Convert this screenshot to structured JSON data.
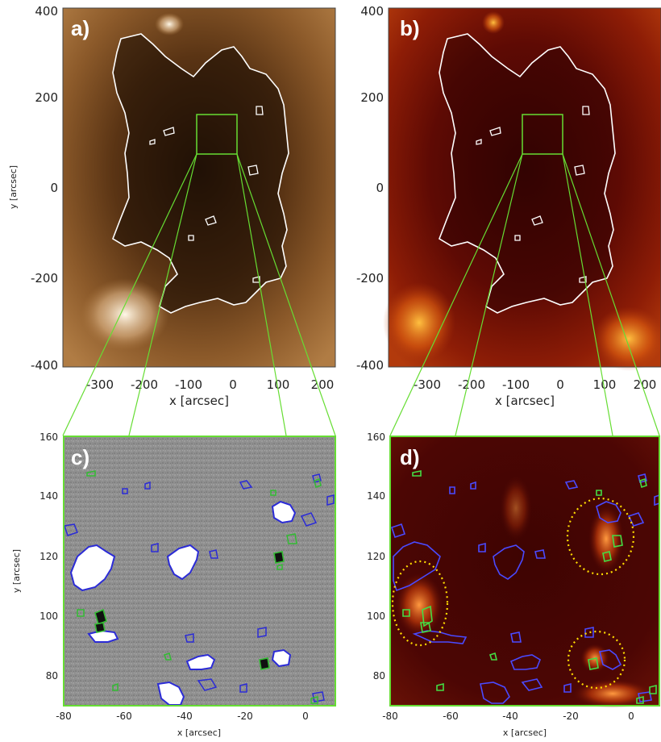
{
  "panels": {
    "a": {
      "label": "a)",
      "x_ticks": [
        "-300",
        "-200",
        "-100",
        "0",
        "100",
        "200"
      ],
      "y_ticks": [
        "400",
        "200",
        "0",
        "-200",
        "-400"
      ],
      "xlabel": "x [arcsec]",
      "ylabel": "y [arcsec]"
    },
    "b": {
      "label": "b)",
      "x_ticks": [
        "-300",
        "-200",
        "-100",
        "0",
        "100",
        "200"
      ],
      "y_ticks": [
        "400",
        "200",
        "0",
        "-200",
        "-400"
      ],
      "xlabel": "x [arcsec]"
    },
    "c": {
      "label": "c)",
      "x_ticks": [
        "-80",
        "-60",
        "-40",
        "-20",
        "0"
      ],
      "y_ticks": [
        "160",
        "140",
        "120",
        "100",
        "80"
      ],
      "xlabel": "x [arcsec]",
      "ylabel": "y [arcsec]"
    },
    "d": {
      "label": "d)",
      "x_ticks": [
        "-80",
        "-60",
        "-40",
        "-20",
        "0"
      ],
      "y_ticks": [
        "160",
        "140",
        "120",
        "100",
        "80"
      ],
      "xlabel": "x [arcsec]"
    }
  },
  "colors": {
    "coronal_hole_contour": "#ffffff",
    "zoom_box": "#66dd33",
    "positive_polarity_contour": "#2b2bd6",
    "negative_polarity_contour": "#33bb33",
    "ellipse_marker": "#ffdd00"
  }
}
